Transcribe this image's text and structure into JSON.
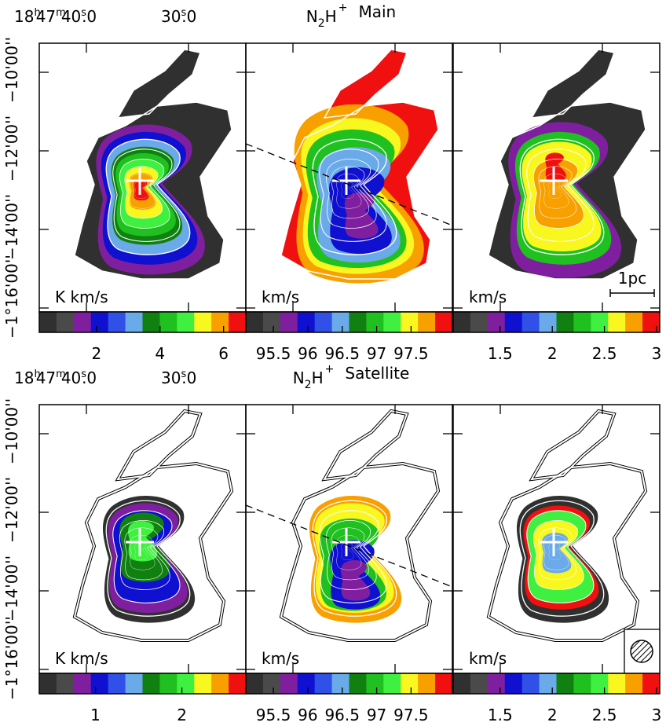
{
  "colormap": [
    "#303030",
    "#4a4a4a",
    "#7f1fa0",
    "#1010d0",
    "#3050e8",
    "#6aaae8",
    "#108010",
    "#20c020",
    "#40f040",
    "#f8f820",
    "#f8a000",
    "#f01010"
  ],
  "rows": [
    {
      "ra_label": [
        "18",
        "h",
        "47",
        "m",
        "40",
        "s",
        ".0"
      ],
      "ra_label_2": [
        "30",
        "s",
        ".0"
      ],
      "title": [
        "N",
        "2",
        "H",
        "+",
        "Main"
      ],
      "dec_labels": [
        "−10'00''",
        "−12'00''",
        "−14'00''",
        "−1°16'00''"
      ],
      "panels": [
        {
          "unit": "K km/s",
          "colorbar": {
            "lim": [
              0.2,
              6.7
            ],
            "ticks": [
              2,
              4,
              6
            ]
          }
        },
        {
          "unit": "km/s",
          "colorbar": {
            "lim": [
              95.1,
              98.1
            ],
            "ticks": [
              95.5,
              96,
              96.5,
              97,
              97.5
            ]
          }
        },
        {
          "unit": "km/s",
          "scale_bar": "1pc",
          "colorbar": {
            "lim": [
              1.05,
              3.03
            ],
            "ticks": [
              1.5,
              2,
              2.5,
              3
            ]
          }
        }
      ]
    },
    {
      "ra_label": [
        "18",
        "h",
        "47",
        "m",
        "40",
        "s",
        ".0"
      ],
      "ra_label_2": [
        "30",
        "s",
        ".0"
      ],
      "title": [
        "N",
        "2",
        "H",
        "+",
        "Satellite"
      ],
      "dec_labels": [
        "−10'00''",
        "−12'00''",
        "−14'00''",
        "−1°16'00''"
      ],
      "panels": [
        {
          "unit": "K km/s",
          "colorbar": {
            "lim": [
              0.35,
              2.74
            ],
            "ticks": [
              1,
              2
            ]
          }
        },
        {
          "unit": "km/s",
          "colorbar": {
            "lim": [
              95.1,
              98.1
            ],
            "ticks": [
              95.5,
              96,
              96.5,
              97,
              97.5
            ]
          }
        },
        {
          "unit": "km/s",
          "colorbar": {
            "lim": [
              1.05,
              3.03
            ],
            "ticks": [
              1.5,
              2,
              2.5,
              3
            ]
          }
        }
      ]
    }
  ]
}
